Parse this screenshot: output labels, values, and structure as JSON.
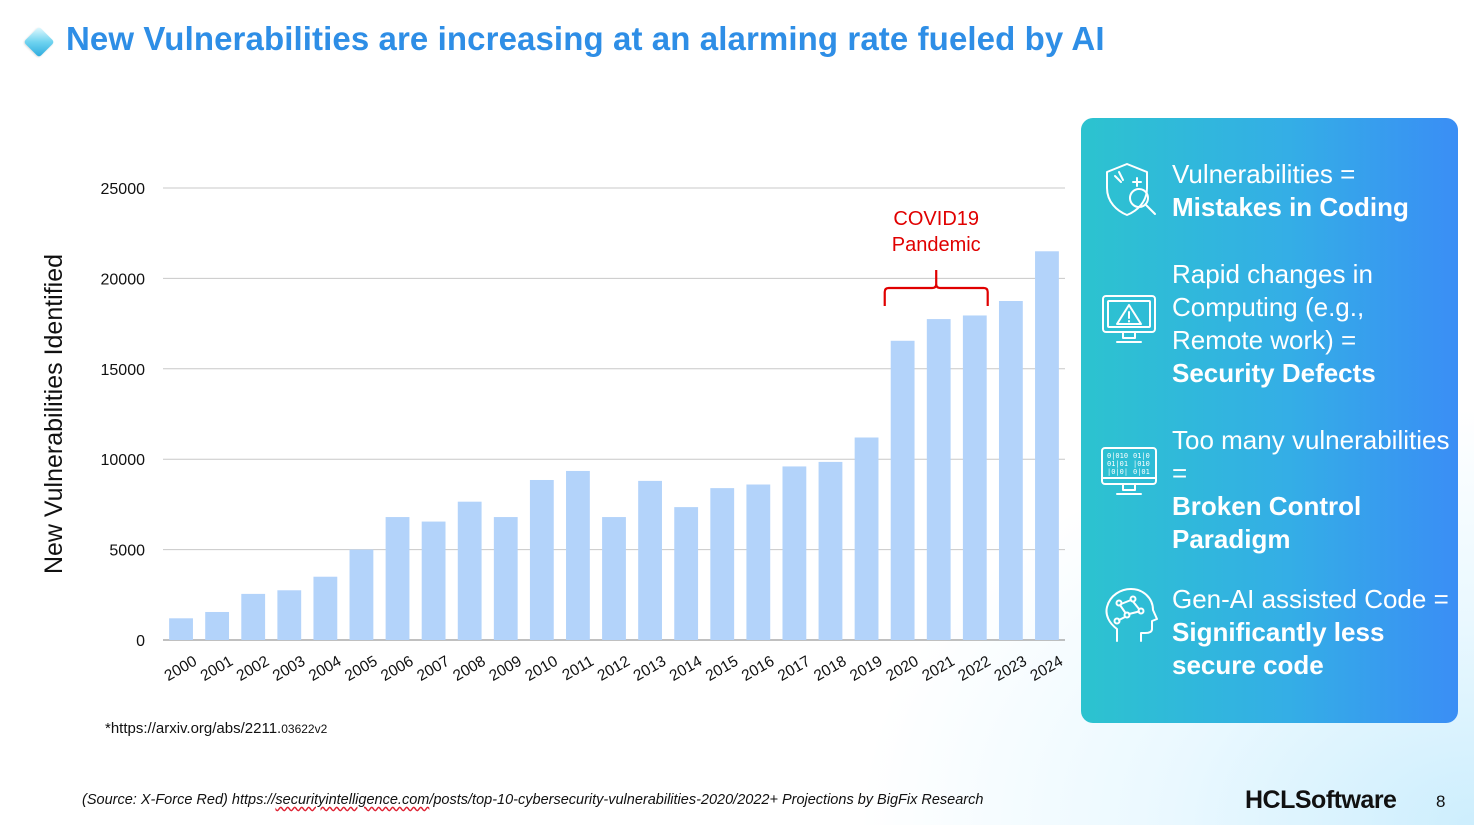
{
  "slide": {
    "title": "New Vulnerabilities are increasing at an alarming rate fueled by AI",
    "footnote_main": "*https://arxiv.org/abs/2211.",
    "footnote_small": "03622v2",
    "source_prefix": "(Source: X-Force Red) https://",
    "source_url_part": "securityintelligence.com",
    "source_suffix": "/posts/top-10-cybersecurity-vulnerabilities-2020/2022+ Projections by BigFix Research",
    "logo_text": "HCLSoftware",
    "page_number": "8",
    "title_color": "#2e8ee6"
  },
  "panel": {
    "items": [
      {
        "icon": "shield-search-icon",
        "line1": "Vulnerabilities =",
        "bold": "Mistakes in Coding"
      },
      {
        "icon": "monitor-warning-icon",
        "line1": "Rapid changes in Computing (e.g., Remote work) =",
        "bold": "Security Defects"
      },
      {
        "icon": "monitor-binary-icon",
        "line1": "Too many vulnerabilities =",
        "bold": "Broken Control Paradigm"
      },
      {
        "icon": "ai-head-icon",
        "line1": "Gen-AI assisted Code =",
        "bold": "Significantly less secure code"
      }
    ]
  },
  "chart_data": {
    "type": "bar",
    "title": "",
    "xlabel": "",
    "ylabel": "New Vulnerabilities Identified",
    "ylim": [
      0,
      25000
    ],
    "yticks": [
      0,
      5000,
      10000,
      15000,
      20000,
      25000
    ],
    "grid": true,
    "bar_color": "#b3d3fa",
    "categories": [
      "2000",
      "2001",
      "2002",
      "2003",
      "2004",
      "2005",
      "2006",
      "2007",
      "2008",
      "2009",
      "2010",
      "2011",
      "2012",
      "2013",
      "2014",
      "2015",
      "2016",
      "2017",
      "2018",
      "2019",
      "2020",
      "2021",
      "2022",
      "2023",
      "2024"
    ],
    "values": [
      1200,
      1550,
      2550,
      2750,
      3500,
      5000,
      6800,
      6550,
      7650,
      6800,
      8850,
      9350,
      6800,
      8800,
      7350,
      8400,
      8600,
      9600,
      9850,
      11200,
      16550,
      17750,
      17950,
      18750,
      21500
    ],
    "annotation": {
      "text_line1": "COVID19",
      "text_line2": "Pandemic",
      "from": "2020",
      "to": "2022",
      "color": "#e00000"
    }
  }
}
